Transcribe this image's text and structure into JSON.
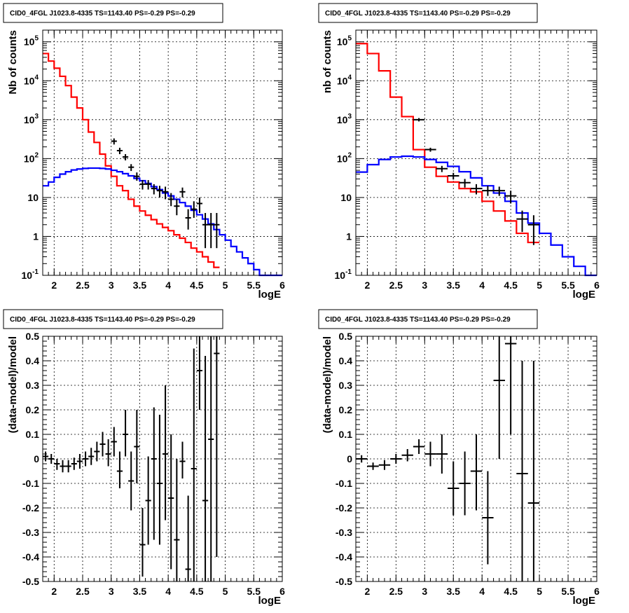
{
  "chart_data": [
    {
      "id": "top-left",
      "type": "line",
      "title": "CID0_4FGL J1023.8-4335 TS=1143.40 PS=-0.29 PS=-0.29",
      "xlabel": "logE",
      "ylabel": "Nb of counts",
      "xlim": [
        1.8,
        6.0
      ],
      "ylim": [
        0.1,
        200000
      ],
      "ylog": true,
      "grid": true,
      "xtick_labels": [
        "2",
        "2.5",
        "3",
        "3.5",
        "4",
        "4.5",
        "5",
        "5.5",
        "6"
      ],
      "ytick_labels": [
        "10^-1",
        "1",
        "10",
        "10^2",
        "10^3",
        "10^4",
        "10^5"
      ],
      "series": [
        {
          "color": "#ff0000",
          "style": "step",
          "edges": [
            1.8,
            1.9,
            2.0,
            2.1,
            2.2,
            2.3,
            2.4,
            2.5,
            2.6,
            2.7,
            2.8,
            2.9,
            3.0,
            3.1,
            3.2,
            3.3,
            3.4,
            3.5,
            3.6,
            3.7,
            3.8,
            3.9,
            4.0,
            4.1,
            4.2,
            4.3,
            4.4,
            4.5,
            4.6,
            4.7,
            4.8,
            4.9
          ],
          "values": [
            50000,
            32000,
            21000,
            13000,
            7500,
            3800,
            2000,
            1000,
            480,
            260,
            130,
            65,
            35,
            20,
            15,
            9,
            6,
            4.5,
            3.5,
            2.7,
            2.1,
            1.7,
            1.4,
            1.1,
            0.9,
            0.7,
            0.5,
            0.4,
            0.3,
            0.22,
            0.16
          ]
        },
        {
          "color": "#0000ff",
          "style": "step",
          "edges": [
            1.8,
            1.9,
            2.0,
            2.1,
            2.2,
            2.3,
            2.4,
            2.5,
            2.6,
            2.7,
            2.8,
            2.9,
            3.0,
            3.1,
            3.2,
            3.3,
            3.4,
            3.5,
            3.6,
            3.7,
            3.8,
            3.9,
            4.0,
            4.1,
            4.2,
            4.3,
            4.4,
            4.5,
            4.6,
            4.7,
            4.8,
            4.9,
            5.0,
            5.1,
            5.2,
            5.3,
            5.4,
            5.5,
            5.6,
            5.7,
            5.8,
            5.9,
            6.0
          ],
          "values": [
            20,
            25,
            33,
            40,
            46,
            51,
            54,
            56,
            57,
            57,
            56,
            54,
            50,
            46,
            41,
            36,
            31,
            27,
            23,
            19,
            16,
            13,
            11,
            9,
            7.4,
            6,
            4.7,
            3.6,
            2.8,
            2.1,
            1.5,
            1.1,
            0.8,
            0.55,
            0.4,
            0.28,
            0.2,
            0.14,
            0.1,
            0.08,
            0.07,
            0.06
          ]
        }
      ],
      "points": [
        {
          "x": 3.05,
          "y": 280,
          "lo": 230,
          "hi": 330,
          "xerr": 0.05
        },
        {
          "x": 3.15,
          "y": 160,
          "lo": 130,
          "hi": 190,
          "xerr": 0.05
        },
        {
          "x": 3.25,
          "y": 110,
          "lo": 90,
          "hi": 130,
          "xerr": 0.05
        },
        {
          "x": 3.35,
          "y": 60,
          "lo": 48,
          "hi": 72,
          "xerr": 0.05
        },
        {
          "x": 3.45,
          "y": 35,
          "lo": 27,
          "hi": 44,
          "xerr": 0.05
        },
        {
          "x": 3.55,
          "y": 22,
          "lo": 16,
          "hi": 28,
          "xerr": 0.05
        },
        {
          "x": 3.65,
          "y": 22,
          "lo": 16,
          "hi": 28,
          "xerr": 0.05
        },
        {
          "x": 3.75,
          "y": 17,
          "lo": 12,
          "hi": 22,
          "xerr": 0.05
        },
        {
          "x": 3.85,
          "y": 15,
          "lo": 10,
          "hi": 20,
          "xerr": 0.05
        },
        {
          "x": 3.95,
          "y": 14,
          "lo": 9,
          "hi": 19,
          "xerr": 0.05
        },
        {
          "x": 4.05,
          "y": 9,
          "lo": 6,
          "hi": 13,
          "xerr": 0.05
        },
        {
          "x": 4.15,
          "y": 6,
          "lo": 3.5,
          "hi": 9,
          "xerr": 0.05
        },
        {
          "x": 4.25,
          "y": 14,
          "lo": 10,
          "hi": 18,
          "xerr": 0.05
        },
        {
          "x": 4.35,
          "y": 3,
          "lo": 1.5,
          "hi": 5,
          "xerr": 0.05
        },
        {
          "x": 4.45,
          "y": 5,
          "lo": 3,
          "hi": 8,
          "xerr": 0.05
        },
        {
          "x": 4.55,
          "y": 7,
          "lo": 4,
          "hi": 10,
          "xerr": 0.05
        },
        {
          "x": 4.65,
          "y": 2,
          "lo": 0.5,
          "hi": 4,
          "xerr": 0.05
        },
        {
          "x": 4.75,
          "y": 2,
          "lo": 0.5,
          "hi": 4,
          "xerr": 0.05
        },
        {
          "x": 4.85,
          "y": 2,
          "lo": 0.5,
          "hi": 4,
          "xerr": 0.05
        }
      ]
    },
    {
      "id": "top-right",
      "type": "line",
      "title": "CID0_4FGL J1023.8-4335 TS=1143.40 PS=-0.29 PS=-0.29",
      "xlabel": "logE",
      "ylabel": "nb of counts",
      "xlim": [
        1.8,
        6.0
      ],
      "ylim": [
        0.1,
        200000
      ],
      "ylog": true,
      "grid": true,
      "xtick_labels": [
        "2",
        "2.5",
        "3",
        "3.5",
        "4",
        "4.5",
        "5",
        "5.5",
        "6"
      ],
      "ytick_labels": [
        "10^-1",
        "1",
        "10",
        "10^2",
        "10^3",
        "10^4",
        "10^5"
      ],
      "series": [
        {
          "color": "#ff0000",
          "style": "step",
          "edges": [
            1.8,
            2.0,
            2.2,
            2.4,
            2.6,
            2.8,
            3.0,
            3.2,
            3.4,
            3.6,
            3.8,
            4.0,
            4.2,
            4.4,
            4.6,
            4.8,
            5.0
          ],
          "values": [
            90000,
            50000,
            18000,
            3800,
            1200,
            170,
            60,
            35,
            25,
            17,
            14,
            8,
            4.5,
            2.5,
            1.2,
            0.7
          ]
        },
        {
          "color": "#0000ff",
          "style": "step",
          "edges": [
            1.8,
            2.0,
            2.2,
            2.4,
            2.6,
            2.8,
            3.0,
            3.2,
            3.4,
            3.6,
            3.8,
            4.0,
            4.2,
            4.4,
            4.6,
            4.8,
            5.0,
            5.2,
            5.4,
            5.6,
            5.8,
            6.0
          ],
          "values": [
            45,
            70,
            95,
            110,
            115,
            110,
            95,
            80,
            63,
            46,
            32,
            20,
            13,
            8,
            4,
            2.2,
            1.2,
            0.6,
            0.3,
            0.17,
            0.1
          ]
        }
      ],
      "points": [
        {
          "x": 2.9,
          "y": 1000,
          "lo": 900,
          "hi": 1100,
          "xerr": 0.1
        },
        {
          "x": 3.1,
          "y": 170,
          "lo": 150,
          "hi": 190,
          "xerr": 0.1
        },
        {
          "x": 3.3,
          "y": 55,
          "lo": 45,
          "hi": 65,
          "xerr": 0.1
        },
        {
          "x": 3.5,
          "y": 36,
          "lo": 29,
          "hi": 43,
          "xerr": 0.1
        },
        {
          "x": 3.7,
          "y": 24,
          "lo": 18,
          "hi": 30,
          "xerr": 0.1
        },
        {
          "x": 3.9,
          "y": 17,
          "lo": 12,
          "hi": 22,
          "xerr": 0.1
        },
        {
          "x": 4.1,
          "y": 15,
          "lo": 11,
          "hi": 20,
          "xerr": 0.1
        },
        {
          "x": 4.3,
          "y": 15,
          "lo": 11,
          "hi": 19,
          "xerr": 0.1
        },
        {
          "x": 4.5,
          "y": 11,
          "lo": 7,
          "hi": 15,
          "xerr": 0.1
        },
        {
          "x": 4.7,
          "y": 2.8,
          "lo": 1.3,
          "hi": 4.6,
          "xerr": 0.1
        },
        {
          "x": 4.9,
          "y": 2,
          "lo": 0.6,
          "hi": 3.5,
          "xerr": 0.1
        }
      ]
    },
    {
      "id": "bottom-left",
      "type": "scatter",
      "title": "CID0_4FGL J1023.8-4335 TS=1143.40 PS=-0.29 PS=-0.29",
      "xlabel": "logE",
      "ylabel": "(data-model)/model",
      "xlim": [
        1.8,
        6.0
      ],
      "ylim": [
        -0.5,
        0.5
      ],
      "ylog": false,
      "grid": true,
      "xtick_labels": [
        "2",
        "2.5",
        "3",
        "3.5",
        "4",
        "4.5",
        "5",
        "5.5",
        "6"
      ],
      "ytick_labels": [
        "-0.5",
        "-0.4",
        "-0.3",
        "-0.2",
        "-0.1",
        "0",
        "0.1",
        "0.2",
        "0.3",
        "0.4",
        "0.5"
      ],
      "points": [
        {
          "x": 1.85,
          "y": 0.01,
          "lo": -0.01,
          "hi": 0.03,
          "xerr": 0.05
        },
        {
          "x": 1.95,
          "y": 0.0,
          "lo": -0.02,
          "hi": 0.02,
          "xerr": 0.05
        },
        {
          "x": 2.05,
          "y": -0.02,
          "lo": -0.045,
          "hi": 0.0,
          "xerr": 0.05
        },
        {
          "x": 2.15,
          "y": -0.03,
          "lo": -0.055,
          "hi": -0.005,
          "xerr": 0.05
        },
        {
          "x": 2.25,
          "y": -0.03,
          "lo": -0.055,
          "hi": -0.005,
          "xerr": 0.05
        },
        {
          "x": 2.35,
          "y": -0.02,
          "lo": -0.045,
          "hi": 0.005,
          "xerr": 0.05
        },
        {
          "x": 2.45,
          "y": -0.01,
          "lo": -0.04,
          "hi": 0.02,
          "xerr": 0.05
        },
        {
          "x": 2.55,
          "y": 0.0,
          "lo": -0.03,
          "hi": 0.03,
          "xerr": 0.05
        },
        {
          "x": 2.65,
          "y": 0.01,
          "lo": -0.025,
          "hi": 0.045,
          "xerr": 0.05
        },
        {
          "x": 2.75,
          "y": 0.03,
          "lo": -0.01,
          "hi": 0.07,
          "xerr": 0.05
        },
        {
          "x": 2.85,
          "y": 0.06,
          "lo": 0.01,
          "hi": 0.11,
          "xerr": 0.05
        },
        {
          "x": 2.95,
          "y": 0.02,
          "lo": -0.03,
          "hi": 0.08,
          "xerr": 0.05
        },
        {
          "x": 3.05,
          "y": 0.07,
          "lo": 0.01,
          "hi": 0.13,
          "xerr": 0.05
        },
        {
          "x": 3.15,
          "y": -0.05,
          "lo": -0.12,
          "hi": 0.03,
          "xerr": 0.05
        },
        {
          "x": 3.25,
          "y": 0.1,
          "lo": 0.01,
          "hi": 0.2,
          "xerr": 0.05
        },
        {
          "x": 3.35,
          "y": -0.09,
          "lo": -0.21,
          "hi": 0.03,
          "xerr": 0.05
        },
        {
          "x": 3.45,
          "y": 0.05,
          "lo": -0.1,
          "hi": 0.2,
          "xerr": 0.05
        },
        {
          "x": 3.55,
          "y": -0.35,
          "lo": -0.48,
          "hi": -0.2,
          "xerr": 0.05
        },
        {
          "x": 3.65,
          "y": -0.17,
          "lo": -0.35,
          "hi": 0.01,
          "xerr": 0.05
        },
        {
          "x": 3.75,
          "y": 0.0,
          "lo": -0.33,
          "hi": 0.21,
          "xerr": 0.05
        },
        {
          "x": 3.85,
          "y": -0.1,
          "lo": -0.35,
          "hi": 0.18,
          "xerr": 0.05
        },
        {
          "x": 3.95,
          "y": 0.02,
          "lo": -0.25,
          "hi": 0.3,
          "xerr": 0.05
        },
        {
          "x": 4.05,
          "y": -0.16,
          "lo": -0.45,
          "hi": 0.1,
          "xerr": 0.05
        },
        {
          "x": 4.15,
          "y": -0.33,
          "lo": -0.5,
          "hi": 0.0,
          "xerr": 0.05
        },
        {
          "x": 4.25,
          "y": -0.01,
          "lo": -0.08,
          "hi": 0.07,
          "xerr": 0.05
        },
        {
          "x": 4.35,
          "y": -0.45,
          "lo": -0.5,
          "hi": -0.15,
          "xerr": 0.05
        },
        {
          "x": 4.45,
          "y": -0.04,
          "lo": -0.5,
          "hi": 0.45,
          "xerr": 0.05
        },
        {
          "x": 4.55,
          "y": 0.36,
          "lo": 0.2,
          "hi": 0.5,
          "xerr": 0.05
        },
        {
          "x": 4.65,
          "y": -0.17,
          "lo": -0.5,
          "hi": 0.42,
          "xerr": 0.05
        },
        {
          "x": 4.75,
          "y": 0.08,
          "lo": -0.5,
          "hi": 0.5,
          "xerr": 0.05
        },
        {
          "x": 4.85,
          "y": 0.43,
          "lo": -0.4,
          "hi": 0.5,
          "xerr": 0.05
        }
      ]
    },
    {
      "id": "bottom-right",
      "type": "scatter",
      "title": "CID0_4FGL J1023.8-4335 TS=1143.40 PS=-0.29 PS=-0.29",
      "xlabel": "logE",
      "ylabel": "(data-model)/model",
      "xlim": [
        1.8,
        6.0
      ],
      "ylim": [
        -0.5,
        0.5
      ],
      "ylog": false,
      "grid": true,
      "xtick_labels": [
        "2",
        "2.5",
        "3",
        "3.5",
        "4",
        "4.5",
        "5",
        "5.5",
        "6"
      ],
      "ytick_labels": [
        "-0.5",
        "-0.4",
        "-0.3",
        "-0.2",
        "-0.1",
        "0",
        "0.1",
        "0.2",
        "0.3",
        "0.4",
        "0.5"
      ],
      "points": [
        {
          "x": 1.9,
          "y": 0.0,
          "lo": -0.015,
          "hi": 0.015,
          "xerr": 0.1
        },
        {
          "x": 2.1,
          "y": -0.03,
          "lo": -0.045,
          "hi": -0.015,
          "xerr": 0.1
        },
        {
          "x": 2.3,
          "y": -0.025,
          "lo": -0.045,
          "hi": -0.005,
          "xerr": 0.1
        },
        {
          "x": 2.5,
          "y": 0.0,
          "lo": -0.02,
          "hi": 0.02,
          "xerr": 0.1
        },
        {
          "x": 2.7,
          "y": 0.015,
          "lo": -0.01,
          "hi": 0.04,
          "xerr": 0.1
        },
        {
          "x": 2.9,
          "y": 0.05,
          "lo": 0.02,
          "hi": 0.08,
          "xerr": 0.1
        },
        {
          "x": 3.1,
          "y": 0.02,
          "lo": -0.03,
          "hi": 0.07,
          "xerr": 0.1
        },
        {
          "x": 3.3,
          "y": 0.02,
          "lo": -0.06,
          "hi": 0.1,
          "xerr": 0.1
        },
        {
          "x": 3.5,
          "y": -0.12,
          "lo": -0.23,
          "hi": -0.01,
          "xerr": 0.1
        },
        {
          "x": 3.7,
          "y": -0.1,
          "lo": -0.23,
          "hi": 0.03,
          "xerr": 0.1
        },
        {
          "x": 3.9,
          "y": -0.05,
          "lo": -0.21,
          "hi": 0.1,
          "xerr": 0.1
        },
        {
          "x": 4.1,
          "y": -0.24,
          "lo": -0.43,
          "hi": -0.05,
          "xerr": 0.1
        },
        {
          "x": 4.3,
          "y": 0.32,
          "lo": 0.0,
          "hi": 0.5,
          "xerr": 0.1
        },
        {
          "x": 4.5,
          "y": 0.47,
          "lo": 0.1,
          "hi": 0.5,
          "xerr": 0.1
        },
        {
          "x": 4.7,
          "y": -0.06,
          "lo": -0.5,
          "hi": 0.4,
          "xerr": 0.1
        },
        {
          "x": 4.9,
          "y": -0.18,
          "lo": -0.5,
          "hi": 0.4,
          "xerr": 0.1
        }
      ]
    }
  ]
}
